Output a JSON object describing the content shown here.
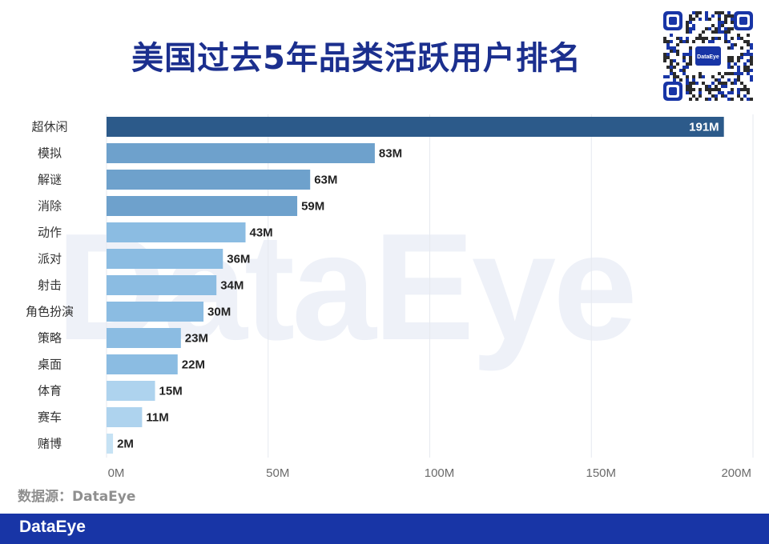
{
  "watermark": "DataEye",
  "qr_badge": "DataEye",
  "source": "数据源：DataEye",
  "footer_logo": "DataEye",
  "chart_data": {
    "type": "bar",
    "orientation": "horizontal",
    "title": "美国过去5年品类活跃用户排名",
    "categories": [
      "超休闲",
      "模拟",
      "解谜",
      "消除",
      "动作",
      "派对",
      "射击",
      "角色扮演",
      "策略",
      "桌面",
      "体育",
      "赛车",
      "赌博"
    ],
    "values": [
      191,
      83,
      63,
      59,
      43,
      36,
      34,
      30,
      23,
      22,
      15,
      11,
      2
    ],
    "data_labels": [
      "191M",
      "83M",
      "63M",
      "59M",
      "43M",
      "36M",
      "34M",
      "30M",
      "23M",
      "22M",
      "15M",
      "11M",
      "2M"
    ],
    "xlim": [
      0,
      200
    ],
    "xticks": [
      0,
      50,
      100,
      150,
      200
    ],
    "xtick_labels": [
      "0M",
      "50M",
      "100M",
      "150M",
      "200M"
    ],
    "grid": "vertical",
    "colors": {
      "highlight": "#2c5a8a",
      "dark": "#6ea1cc",
      "mid": "#8bbce2",
      "light": "#aed3ee",
      "lightest": "#c6e2f4"
    }
  }
}
